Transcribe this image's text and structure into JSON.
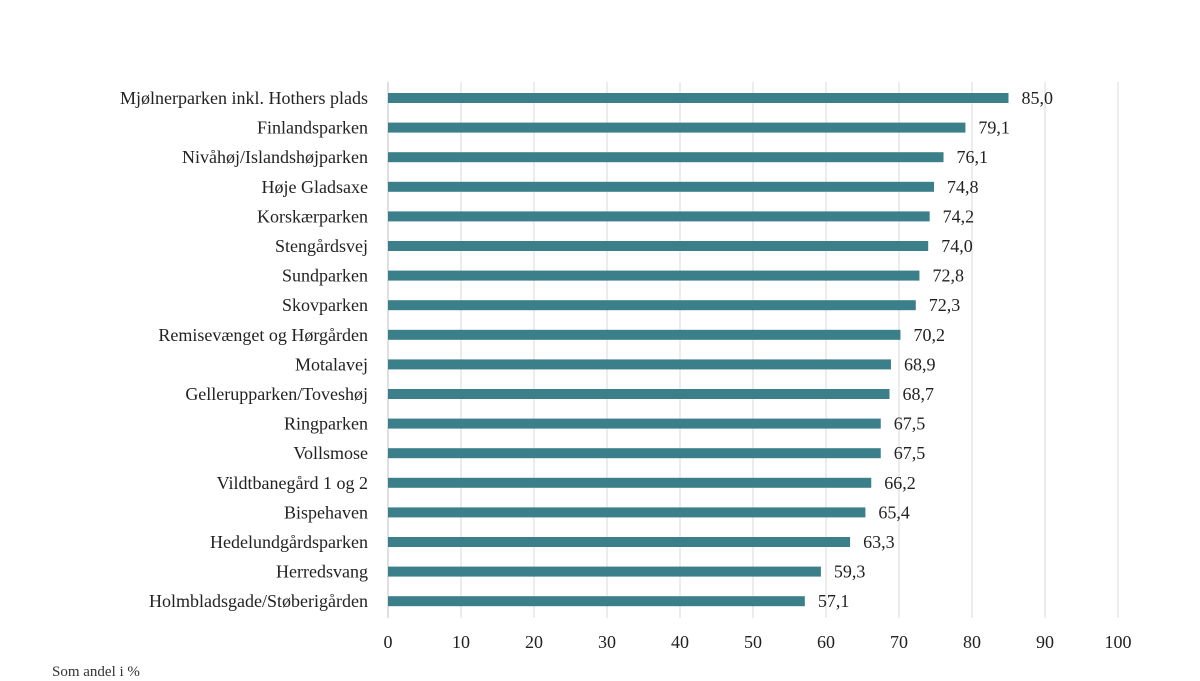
{
  "chart_data": {
    "type": "bar",
    "orientation": "horizontal",
    "title": "",
    "xlabel": "",
    "ylabel": "",
    "xlim": [
      0,
      100
    ],
    "x_ticks": [
      0,
      10,
      20,
      30,
      40,
      50,
      60,
      70,
      80,
      90,
      100
    ],
    "grid": true,
    "bar_color": "#3b7f8a",
    "categories": [
      "Mjølnerparken inkl. Hothers plads",
      "Finlandsparken",
      "Nivåhøj/Islandshøjparken",
      "Høje Gladsaxe",
      "Korskærparken",
      "Stengårdsvej",
      "Sundparken",
      "Skovparken",
      "Remisevænget og Hørgården",
      "Motalavej",
      "Gellerupparken/Toveshøj",
      "Ringparken",
      "Vollsmose",
      "Vildtbanegård 1 og 2",
      "Bispehaven",
      "Hedelundgårdsparken",
      "Herredsvang",
      "Holmbladsgade/Støberigården"
    ],
    "values": [
      85.0,
      79.1,
      76.1,
      74.8,
      74.2,
      74.0,
      72.8,
      72.3,
      70.2,
      68.9,
      68.7,
      67.5,
      67.5,
      66.2,
      65.4,
      63.3,
      59.3,
      57.1
    ],
    "value_labels": [
      "85,0",
      "79,1",
      "76,1",
      "74,8",
      "74,2",
      "74,0",
      "72,8",
      "72,3",
      "70,2",
      "68,9",
      "68,7",
      "67,5",
      "67,5",
      "66,2",
      "65,4",
      "63,3",
      "59,3",
      "57,1"
    ]
  },
  "source_note": "Som andel i %"
}
